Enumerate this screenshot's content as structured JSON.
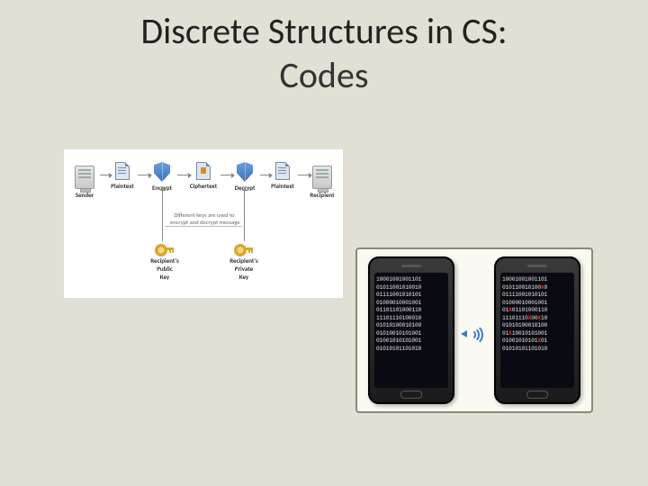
{
  "title": {
    "line1": "Discrete Structures in CS:",
    "line2": "Codes"
  },
  "colors": {
    "slide_bg": "#e2e0d4",
    "crypto_bg": "#ffffff",
    "phone_panel_bg": "#fbfaf2",
    "phone_panel_border": "#8a8878",
    "phone_body": "#1a1a1c",
    "phone_screen": "#0a0a12",
    "bits_color": "#e4e4e4",
    "error_color": "#ff3020",
    "shield_color": "#3d6fb5",
    "key_color": "#d9a62e",
    "wifi_color": "#3b7bd1"
  },
  "crypto": {
    "type": "flowchart",
    "nodes": {
      "sender": {
        "label": "Sender"
      },
      "plain1": {
        "label": "Plaintext"
      },
      "encrypt": {
        "label": "Encrypt"
      },
      "cipher": {
        "label": "Ciphertext"
      },
      "decrypt": {
        "label": "Decrypt"
      },
      "plain2": {
        "label": "Plaintext"
      },
      "recipient": {
        "label": "Recipient"
      },
      "pubkey": {
        "label": "Recipient's\nPublic\nKey"
      },
      "privkey": {
        "label": "Recipient's\nPrivate\nKey"
      }
    },
    "note": "Different keys are used to\nencrypt and decrypt message"
  },
  "phones": {
    "type": "infographic",
    "left_bits": [
      "10001001001101",
      "01011001010010",
      "01111001010101",
      "01000010001001",
      "01101101000110",
      "11101110100010",
      "01010100010100",
      "01010010101001",
      "01001010101001",
      "01010101101010"
    ],
    "right_bits": [
      {
        "t": "10001001001101",
        "err": []
      },
      {
        "t": "01011001010010",
        "err": [
          12
        ]
      },
      {
        "t": "01111001010101",
        "err": []
      },
      {
        "t": "01000010001001",
        "err": []
      },
      {
        "t": "01101101000110",
        "err": [
          2
        ]
      },
      {
        "t": "11101110100010",
        "err": [
          8,
          11
        ]
      },
      {
        "t": "01010100010100",
        "err": []
      },
      {
        "t": "01010010101001",
        "err": [
          2
        ]
      },
      {
        "t": "01001010101001",
        "err": [
          11
        ]
      },
      {
        "t": "01010101101010",
        "err": []
      }
    ]
  }
}
